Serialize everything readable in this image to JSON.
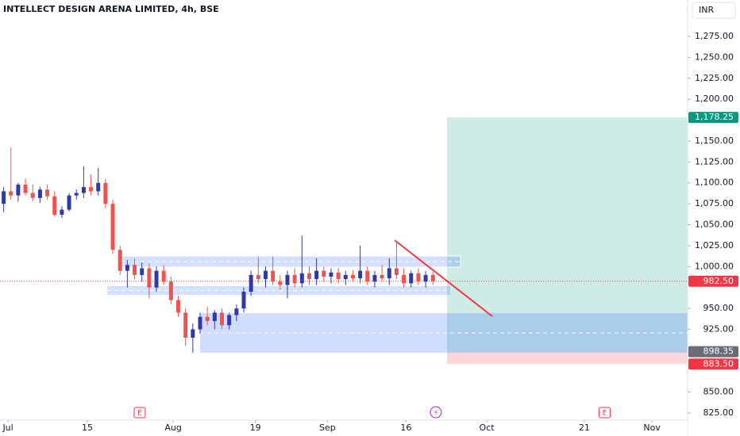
{
  "chart_data": {
    "type": "candlestick",
    "title": "INTELLECT DESIGN ARENA LIMITED, 4h, BSE",
    "currency": "INR",
    "up_color": "#2f3aa6",
    "down_color": "#ef5350",
    "open": [
      1075,
      1090,
      1085,
      1098,
      1088,
      1082,
      1092,
      1084,
      1062,
      1068,
      1085,
      1088,
      1095,
      1090,
      1100,
      1075,
      1020,
      995,
      1002,
      990,
      998,
      975,
      995,
      982,
      960,
      945,
      915,
      925,
      940,
      935,
      945,
      930,
      942,
      950,
      970,
      990,
      985,
      995,
      982,
      978,
      990,
      980,
      992,
      985,
      995,
      988,
      993,
      985,
      990,
      986,
      995,
      982,
      990,
      986,
      998,
      990,
      980,
      992,
      982,
      990
    ],
    "high": [
      1095,
      1142,
      1100,
      1105,
      1098,
      1095,
      1098,
      1090,
      1072,
      1088,
      1092,
      1120,
      1110,
      1118,
      1105,
      1080,
      1025,
      1008,
      1010,
      1005,
      1004,
      1000,
      1002,
      988,
      965,
      950,
      932,
      945,
      952,
      948,
      950,
      945,
      955,
      975,
      995,
      1012,
      1000,
      1012,
      990,
      995,
      998,
      1037,
      1000,
      1010,
      1000,
      998,
      998,
      995,
      996,
      1025,
      1000,
      995,
      1002,
      1010,
      1030,
      998,
      995,
      998,
      995,
      994
    ],
    "low": [
      1065,
      1080,
      1078,
      1085,
      1078,
      1076,
      1080,
      1060,
      1058,
      1066,
      1080,
      1082,
      1085,
      1085,
      1070,
      1015,
      990,
      975,
      985,
      982,
      962,
      970,
      978,
      955,
      940,
      905,
      897,
      920,
      930,
      925,
      925,
      925,
      935,
      945,
      965,
      980,
      975,
      978,
      972,
      962,
      975,
      975,
      978,
      978,
      982,
      980,
      980,
      978,
      982,
      980,
      978,
      975,
      982,
      978,
      985,
      975,
      975,
      978,
      975,
      978
    ],
    "close": [
      1090,
      1085,
      1098,
      1088,
      1082,
      1092,
      1084,
      1062,
      1068,
      1085,
      1088,
      1095,
      1090,
      1100,
      1075,
      1020,
      995,
      1002,
      990,
      998,
      975,
      995,
      982,
      960,
      945,
      915,
      925,
      940,
      935,
      945,
      930,
      942,
      950,
      970,
      990,
      985,
      995,
      982,
      978,
      990,
      980,
      992,
      985,
      995,
      988,
      993,
      985,
      990,
      986,
      995,
      982,
      990,
      986,
      998,
      990,
      980,
      992,
      982,
      990,
      982.5
    ],
    "xlim": [
      -0.5,
      94
    ],
    "xticks": [
      {
        "value": 0.6,
        "label": "Jul"
      },
      {
        "value": 11.5,
        "label": "15"
      },
      {
        "value": 23.3,
        "label": "Aug"
      },
      {
        "value": 34.6,
        "label": "19"
      },
      {
        "value": 44.5,
        "label": "Sep"
      },
      {
        "value": 55.3,
        "label": "16"
      },
      {
        "value": 66.4,
        "label": "Oct"
      },
      {
        "value": 79.8,
        "label": "21"
      },
      {
        "value": 89.1,
        "label": "Nov"
      }
    ],
    "ylim": [
      816.5,
      1318.6
    ],
    "yticks": [
      {
        "value": 1275,
        "label": "1,275.00"
      },
      {
        "value": 1250,
        "label": "1,250.00"
      },
      {
        "value": 1225,
        "label": "1,225.00"
      },
      {
        "value": 1200,
        "label": "1,200.00"
      },
      {
        "value": 1150,
        "label": "1,150.00"
      },
      {
        "value": 1125,
        "label": "1,125.00"
      },
      {
        "value": 1100,
        "label": "1,100.00"
      },
      {
        "value": 1075,
        "label": "1,075.00"
      },
      {
        "value": 1050,
        "label": "1,050.00"
      },
      {
        "value": 1025,
        "label": "1,025.00"
      },
      {
        "value": 1000,
        "label": "1,000.00"
      },
      {
        "value": 950,
        "label": "950.00"
      },
      {
        "value": 925,
        "label": "925.00"
      },
      {
        "value": 850,
        "label": "850.00"
      },
      {
        "value": 825,
        "label": "825.00"
      }
    ],
    "price_labels": [
      {
        "value": 1178.25,
        "label": "1,178.25",
        "color": "#089981"
      },
      {
        "value": 982.5,
        "label": "982.50",
        "color": "#f23645"
      },
      {
        "value": 898.35,
        "label": "898.35",
        "color": "#6a6d78"
      },
      {
        "value": 883.5,
        "label": "883.50",
        "color": "#f23645"
      }
    ],
    "events": [
      {
        "label": "E",
        "x": 18.7
      },
      {
        "label": "⚡",
        "x": 59.4
      },
      {
        "label": "E",
        "x": 82.6
      }
    ]
  }
}
